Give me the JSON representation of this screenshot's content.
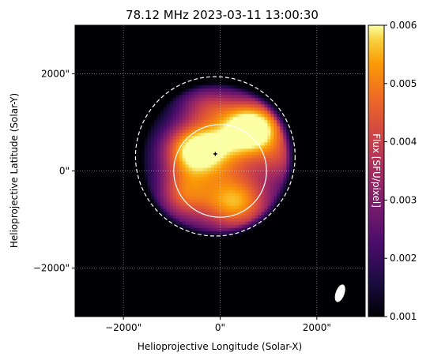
{
  "chart_data": {
    "type": "heatmap",
    "title": "78.12 MHz 2023-03-11 13:00:30",
    "xlabel": "Helioprojective Longitude (Solar-X)",
    "ylabel": "Helioprojective Latitude (Solar-Y)",
    "xlim": [
      -3000,
      3000
    ],
    "ylim": [
      -3000,
      3000
    ],
    "x_ticks": [
      {
        "value": -2000,
        "label": "−2000\""
      },
      {
        "value": 0,
        "label": "0\""
      },
      {
        "value": 2000,
        "label": "2000\""
      }
    ],
    "y_ticks": [
      {
        "value": 2000,
        "label": "2000\""
      },
      {
        "value": 0,
        "label": "0\""
      },
      {
        "value": -2000,
        "label": "−2000\""
      }
    ],
    "grid": true,
    "colorbar": {
      "label": "Flux [SFU/pixel]",
      "min": 0.001,
      "max": 0.006,
      "ticks": [
        {
          "value": 0.006,
          "label": "0.006"
        },
        {
          "value": 0.005,
          "label": "0.005"
        },
        {
          "value": 0.004,
          "label": "0.004"
        },
        {
          "value": 0.003,
          "label": "0.003"
        },
        {
          "value": 0.002,
          "label": "0.002"
        },
        {
          "value": 0.001,
          "label": "0.001"
        }
      ]
    },
    "overlays": {
      "solar_disk": {
        "center": [
          0,
          0
        ],
        "radius": 960
      },
      "dashed_circle": {
        "center": [
          -100,
          300
        ],
        "radius": 1650
      },
      "marker": {
        "x": -100,
        "y": 350
      },
      "beam_ellipse": {
        "center": [
          2480,
          -2520
        ],
        "rx": 90,
        "ry": 190,
        "rotation_deg": 20
      }
    },
    "emission_blobs": [
      {
        "x": 0,
        "y": 0,
        "sx": 1100,
        "sy": 1100,
        "amp": 0.0032
      },
      {
        "x": 700,
        "y": 900,
        "sx": 500,
        "sy": 420,
        "amp": 0.0051
      },
      {
        "x": -500,
        "y": 450,
        "sx": 480,
        "sy": 380,
        "amp": 0.004
      },
      {
        "x": 350,
        "y": -700,
        "sx": 520,
        "sy": 420,
        "amp": 0.003
      },
      {
        "x": -800,
        "y": -500,
        "sx": 380,
        "sy": 380,
        "amp": 0.0022
      },
      {
        "x": -300,
        "y": 1400,
        "sx": 450,
        "sy": 300,
        "amp": 0.002
      },
      {
        "x": 1300,
        "y": 200,
        "sx": 300,
        "sy": 350,
        "amp": 0.0016
      }
    ]
  }
}
